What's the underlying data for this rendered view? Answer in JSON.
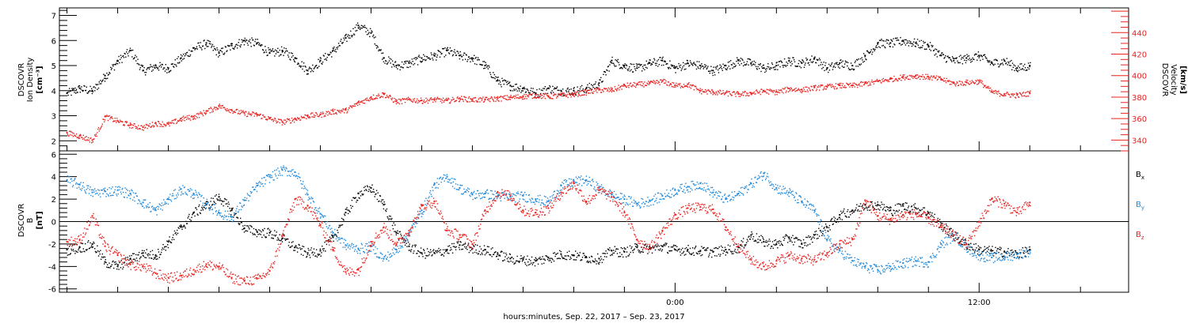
{
  "chart_data": [
    {
      "type": "scatter",
      "panel": "plasma",
      "ylabel_lines": [
        "DSCOVR",
        "Ion Density",
        "[cm⁻³]"
      ],
      "y2label_lines": [
        "DSCOVR",
        "Velocity",
        "[km/s]"
      ],
      "ylim": [
        1.6,
        7.3
      ],
      "y2lim": [
        330,
        463
      ],
      "yticks": [
        2,
        3,
        4,
        5,
        6,
        7
      ],
      "y2ticks": [
        340,
        360,
        380,
        400,
        420,
        440
      ],
      "colors": {
        "density": "#000000",
        "velocity": "#e8221f"
      },
      "series": [
        {
          "name": "Ion Density",
          "axis": "left",
          "color": "#000000",
          "x": [
            -24.0,
            -23.5,
            -23.0,
            -22.5,
            -22.0,
            -21.5,
            -21.0,
            -20.5,
            -20.0,
            -19.5,
            -19.0,
            -18.5,
            -18.0,
            -17.5,
            -17.0,
            -16.5,
            -16.0,
            -15.5,
            -15.0,
            -14.5,
            -14.0,
            -13.5,
            -13.0,
            -12.5,
            -12.0,
            -11.5,
            -11.0,
            -10.5,
            -10.0,
            -9.5,
            -9.0,
            -8.5,
            -8.0,
            -7.5,
            -7.0,
            -6.5,
            -6.0,
            -5.5,
            -5.0,
            -4.5,
            -4.0,
            -3.5,
            -3.0,
            -2.5,
            -2.0,
            -1.5,
            -1.0,
            -0.5,
            0.0,
            0.5,
            1.0,
            1.5,
            2.0,
            2.5,
            3.0,
            3.5,
            4.0,
            4.5,
            5.0,
            5.5,
            6.0,
            6.5,
            7.0,
            7.5,
            8.0,
            8.5,
            9.0,
            9.5,
            10.0,
            10.5,
            11.0,
            11.5,
            12.0,
            12.5,
            13.0,
            13.5,
            14.0
          ],
          "y": [
            3.9,
            4.1,
            4.0,
            4.6,
            5.2,
            5.6,
            4.8,
            5.0,
            4.9,
            5.3,
            5.7,
            5.9,
            5.5,
            5.8,
            6.0,
            5.9,
            5.5,
            5.6,
            5.3,
            4.8,
            5.2,
            5.6,
            6.1,
            6.6,
            6.3,
            5.3,
            5.0,
            5.1,
            5.3,
            5.4,
            5.6,
            5.4,
            5.3,
            5.0,
            4.4,
            4.2,
            4.1,
            3.9,
            4.1,
            4.0,
            4.0,
            4.1,
            4.3,
            5.2,
            5.0,
            4.9,
            5.1,
            5.2,
            4.9,
            5.1,
            5.0,
            4.8,
            5.0,
            5.2,
            5.1,
            4.9,
            5.0,
            5.2,
            5.1,
            5.3,
            4.9,
            5.1,
            5.0,
            5.4,
            5.9,
            5.9,
            6.0,
            5.9,
            5.8,
            5.4,
            5.2,
            5.3,
            5.4,
            5.1,
            5.2,
            4.9,
            5.0
          ]
        },
        {
          "name": "Velocity",
          "axis": "right",
          "color": "#e8221f",
          "x": [
            -24.0,
            -23.5,
            -23.0,
            -22.5,
            -22.0,
            -21.5,
            -21.0,
            -20.5,
            -20.0,
            -19.5,
            -19.0,
            -18.5,
            -18.0,
            -17.5,
            -17.0,
            -16.5,
            -16.0,
            -15.5,
            -15.0,
            -14.5,
            -14.0,
            -13.5,
            -13.0,
            -12.5,
            -12.0,
            -11.5,
            -11.0,
            -10.5,
            -10.0,
            -9.5,
            -9.0,
            -8.5,
            -8.0,
            -7.5,
            -7.0,
            -6.5,
            -6.0,
            -5.5,
            -5.0,
            -4.5,
            -4.0,
            -3.5,
            -3.0,
            -2.5,
            -2.0,
            -1.5,
            -1.0,
            -0.5,
            0.0,
            0.5,
            1.0,
            1.5,
            2.0,
            2.5,
            3.0,
            3.5,
            4.0,
            4.5,
            5.0,
            5.5,
            6.0,
            6.5,
            7.0,
            7.5,
            8.0,
            8.5,
            9.0,
            9.5,
            10.0,
            10.5,
            11.0,
            11.5,
            12.0,
            12.5,
            13.0,
            13.5,
            14.0
          ],
          "y": [
            347,
            344,
            340,
            362,
            358,
            354,
            352,
            356,
            355,
            360,
            362,
            367,
            372,
            368,
            365,
            364,
            360,
            357,
            360,
            363,
            364,
            367,
            368,
            375,
            380,
            383,
            376,
            378,
            377,
            378,
            377,
            379,
            378,
            378,
            379,
            380,
            381,
            382,
            381,
            382,
            383,
            385,
            387,
            387,
            391,
            392,
            393,
            395,
            391,
            392,
            386,
            385,
            384,
            383,
            384,
            386,
            385,
            388,
            387,
            389,
            390,
            391,
            391,
            393,
            395,
            397,
            399,
            400,
            399,
            397,
            393,
            394,
            395,
            385,
            383,
            382,
            384
          ]
        }
      ]
    },
    {
      "type": "scatter",
      "panel": "magnetic-field",
      "ylabel_lines": [
        "DSCOVR",
        "B",
        "[nT]"
      ],
      "ylim": [
        -6.3,
        6.3
      ],
      "yticks": [
        -6,
        -4,
        -2,
        0,
        2,
        4,
        6
      ],
      "zero_line": true,
      "colors": {
        "bx": "#000000",
        "by": "#1f88d9",
        "bz": "#e8221f"
      },
      "series": [
        {
          "name": "B",
          "subscript": "x",
          "color": "#000000",
          "x": [
            -24.0,
            -23.5,
            -23.0,
            -22.5,
            -22.0,
            -21.5,
            -21.0,
            -20.5,
            -20.0,
            -19.5,
            -19.0,
            -18.5,
            -18.0,
            -17.5,
            -17.0,
            -16.5,
            -16.0,
            -15.5,
            -15.0,
            -14.5,
            -14.0,
            -13.5,
            -13.0,
            -12.5,
            -12.0,
            -11.5,
            -11.0,
            -10.5,
            -10.0,
            -9.5,
            -9.0,
            -8.5,
            -8.0,
            -7.5,
            -7.0,
            -6.5,
            -6.0,
            -5.5,
            -5.0,
            -4.5,
            -4.0,
            -3.5,
            -3.0,
            -2.5,
            -2.0,
            -1.5,
            -1.0,
            -0.5,
            0.0,
            0.5,
            1.0,
            1.5,
            2.0,
            2.5,
            3.0,
            3.5,
            4.0,
            4.5,
            5.0,
            5.5,
            6.0,
            6.5,
            7.0,
            7.5,
            8.0,
            8.5,
            9.0,
            9.5,
            10.0,
            10.5,
            11.0,
            11.5,
            12.0,
            12.5,
            13.0,
            13.5,
            14.0
          ],
          "y": [
            -2.5,
            -2.3,
            -2.0,
            -3.6,
            -4.0,
            -3.3,
            -2.8,
            -3.0,
            -1.8,
            -0.5,
            0.8,
            1.5,
            2.2,
            1.0,
            -0.6,
            -0.9,
            -1.0,
            -1.5,
            -2.3,
            -2.8,
            -2.6,
            -1.4,
            0.8,
            2.5,
            3.0,
            1.5,
            -1.0,
            -2.2,
            -2.8,
            -2.8,
            -2.5,
            -2.1,
            -2.4,
            -2.5,
            -2.9,
            -3.3,
            -3.4,
            -3.5,
            -3.2,
            -2.9,
            -3.0,
            -3.2,
            -3.3,
            -2.6,
            -2.7,
            -2.3,
            -2.4,
            -2.2,
            -2.5,
            -2.5,
            -2.6,
            -2.7,
            -2.5,
            -2.3,
            -1.2,
            -1.8,
            -2.0,
            -1.4,
            -2.0,
            -1.2,
            -0.5,
            0.6,
            1.0,
            1.5,
            1.5,
            1.0,
            1.4,
            1.2,
            0.8,
            -0.3,
            -1.2,
            -2.0,
            -2.5,
            -2.6,
            -2.7,
            -2.9,
            -2.5
          ]
        },
        {
          "name": "B",
          "subscript": "y",
          "color": "#1f88d9",
          "x": [
            -24.0,
            -23.5,
            -23.0,
            -22.5,
            -22.0,
            -21.5,
            -21.0,
            -20.5,
            -20.0,
            -19.5,
            -19.0,
            -18.5,
            -18.0,
            -17.5,
            -17.0,
            -16.5,
            -16.0,
            -15.5,
            -15.0,
            -14.5,
            -14.0,
            -13.5,
            -13.0,
            -12.5,
            -12.0,
            -11.5,
            -11.0,
            -10.5,
            -10.0,
            -9.5,
            -9.0,
            -8.5,
            -8.0,
            -7.5,
            -7.0,
            -6.5,
            -6.0,
            -5.5,
            -5.0,
            -4.5,
            -4.0,
            -3.5,
            -3.0,
            -2.5,
            -2.0,
            -1.5,
            -1.0,
            -0.5,
            0.0,
            0.5,
            1.0,
            1.5,
            2.0,
            2.5,
            3.0,
            3.5,
            4.0,
            4.5,
            5.0,
            5.5,
            6.0,
            6.5,
            7.0,
            7.5,
            8.0,
            8.5,
            9.0,
            9.5,
            10.0,
            10.5,
            11.0,
            11.5,
            12.0,
            12.5,
            13.0,
            13.5,
            14.0
          ],
          "y": [
            3.7,
            3.3,
            2.6,
            2.7,
            2.8,
            2.5,
            1.7,
            1.0,
            2.0,
            2.9,
            2.5,
            1.6,
            0.8,
            0.4,
            1.9,
            3.2,
            4.0,
            4.6,
            4.4,
            2.4,
            0.7,
            -1.0,
            -2.1,
            -2.4,
            -2.2,
            -3.3,
            -2.5,
            -1.0,
            1.0,
            3.3,
            4.0,
            3.0,
            2.4,
            2.5,
            2.3,
            2.2,
            2.3,
            2.0,
            1.8,
            3.2,
            3.6,
            3.7,
            3.0,
            2.4,
            2.0,
            1.6,
            1.9,
            2.3,
            2.8,
            3.1,
            3.4,
            2.6,
            2.0,
            2.5,
            3.4,
            4.3,
            3.0,
            2.6,
            1.8,
            1.0,
            -1.6,
            -2.6,
            -3.5,
            -4.0,
            -4.3,
            -4.0,
            -3.7,
            -3.5,
            -3.6,
            -2.0,
            -1.2,
            -2.3,
            -3.0,
            -3.2,
            -3.1,
            -2.9,
            -2.6
          ]
        },
        {
          "name": "B",
          "subscript": "z",
          "color": "#e8221f",
          "x": [
            -24.0,
            -23.5,
            -23.0,
            -22.5,
            -22.0,
            -21.5,
            -21.0,
            -20.5,
            -20.0,
            -19.5,
            -19.0,
            -18.5,
            -18.0,
            -17.5,
            -17.0,
            -16.5,
            -16.0,
            -15.5,
            -15.0,
            -14.5,
            -14.0,
            -13.5,
            -13.0,
            -12.5,
            -12.0,
            -11.5,
            -11.0,
            -10.5,
            -10.0,
            -9.5,
            -9.0,
            -8.5,
            -8.0,
            -7.5,
            -7.0,
            -6.5,
            -6.0,
            -5.5,
            -5.0,
            -4.5,
            -4.0,
            -3.5,
            -3.0,
            -2.5,
            -2.0,
            -1.5,
            -1.0,
            -0.5,
            0.0,
            0.5,
            1.0,
            1.5,
            2.0,
            2.5,
            3.0,
            3.5,
            4.0,
            4.5,
            5.0,
            5.5,
            6.0,
            6.5,
            7.0,
            7.5,
            8.0,
            8.5,
            9.0,
            9.5,
            10.0,
            10.5,
            11.0,
            11.5,
            12.0,
            12.5,
            13.0,
            13.5,
            14.0
          ],
          "y": [
            -1.8,
            -1.6,
            0.5,
            -2.2,
            -3.0,
            -3.8,
            -4.0,
            -4.6,
            -5.0,
            -4.8,
            -4.3,
            -3.8,
            -4.0,
            -5.0,
            -5.3,
            -5.1,
            -4.4,
            -1.2,
            2.0,
            1.4,
            -0.3,
            -2.5,
            -4.5,
            -4.3,
            -1.8,
            -0.5,
            -2.0,
            -0.8,
            1.4,
            1.8,
            -0.8,
            -1.2,
            -2.0,
            1.0,
            2.6,
            2.3,
            1.0,
            0.8,
            1.2,
            2.6,
            3.4,
            1.8,
            2.8,
            2.2,
            0.8,
            -1.6,
            -2.3,
            -0.8,
            0.6,
            1.2,
            1.3,
            1.1,
            -0.5,
            -2.2,
            -3.4,
            -4.0,
            -3.5,
            -3.0,
            -3.3,
            -3.4,
            -2.8,
            -2.0,
            -1.6,
            1.9,
            0.5,
            0.2,
            0.6,
            0.7,
            0.3,
            -0.5,
            -1.2,
            -2.0,
            0.0,
            2.0,
            1.6,
            0.8,
            1.7
          ]
        }
      ]
    }
  ],
  "xaxis": {
    "label": "hours:minutes, Sep. 22, 2017 – Sep. 23, 2017",
    "range": [
      -24.3,
      17.9
    ],
    "major_ticks": [
      {
        "x": 0,
        "label": "0:00"
      },
      {
        "x": 12,
        "label": "12:00"
      }
    ],
    "minor_step_hours": 2
  }
}
